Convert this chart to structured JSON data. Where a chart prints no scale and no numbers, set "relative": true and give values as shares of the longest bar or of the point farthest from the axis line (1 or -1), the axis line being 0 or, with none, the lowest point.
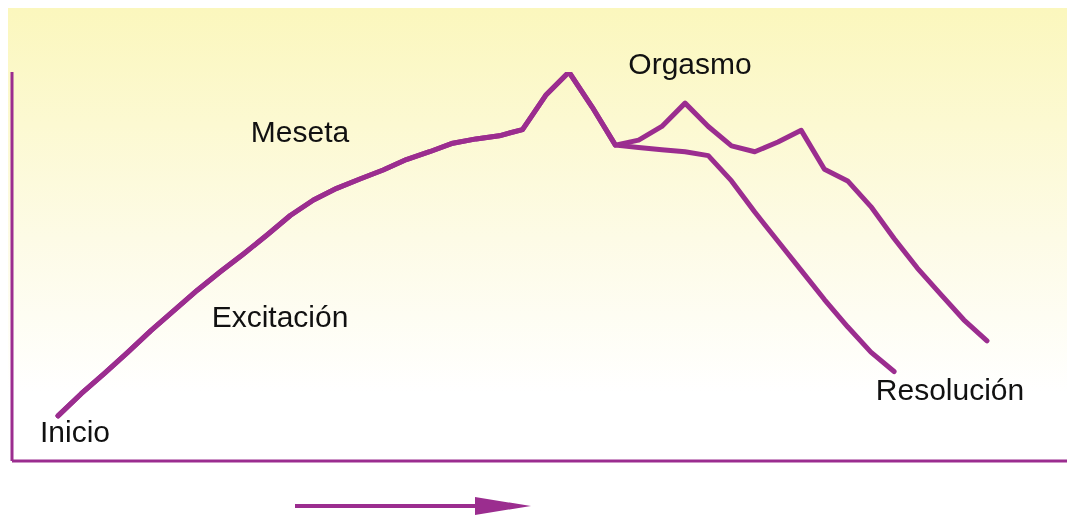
{
  "chart_data": {
    "type": "line",
    "relative": true,
    "categories": [
      null,
      null,
      null,
      null,
      null,
      null,
      null,
      null,
      null,
      null,
      null,
      null,
      null,
      null,
      null,
      null,
      null,
      null,
      null,
      null,
      null,
      null,
      null,
      null,
      null,
      null,
      null,
      null,
      null,
      null,
      null,
      null,
      null,
      null,
      null,
      null,
      null,
      null,
      null,
      null,
      null
    ],
    "series": [
      {
        "color": "#9b2d8f",
        "values": [
          0.116,
          0.173,
          0.225,
          0.279,
          0.335,
          0.387,
          0.439,
          0.487,
          0.533,
          0.581,
          0.631,
          0.671,
          0.701,
          0.725,
          0.748,
          0.775,
          0.795,
          0.817,
          0.828,
          0.836,
          0.852,
          0.94,
          1,
          0.91,
          0.812,
          0.806,
          0.8,
          0.795,
          0.785,
          0.72,
          0.64,
          0.565,
          0.49,
          0.415,
          0.345,
          0.28,
          0.23,
          null,
          null,
          null,
          null
        ]
      },
      {
        "color": "#9b2d8f",
        "values": [
          0.116,
          0.173,
          0.225,
          0.279,
          0.335,
          0.387,
          0.439,
          0.487,
          0.533,
          0.581,
          0.631,
          0.671,
          0.701,
          0.725,
          0.748,
          0.775,
          0.795,
          0.817,
          0.828,
          0.836,
          0.852,
          0.94,
          1,
          0.91,
          0.812,
          0.825,
          0.86,
          0.92,
          0.86,
          0.81,
          0.795,
          0.82,
          0.85,
          0.75,
          0.72,
          0.654,
          0.572,
          0.496,
          0.429,
          0.363,
          0.309
        ]
      }
    ],
    "annotations": [
      "Inicio",
      "Excitación",
      "Meseta",
      "Orgasmo",
      "Resolución"
    ]
  }
}
